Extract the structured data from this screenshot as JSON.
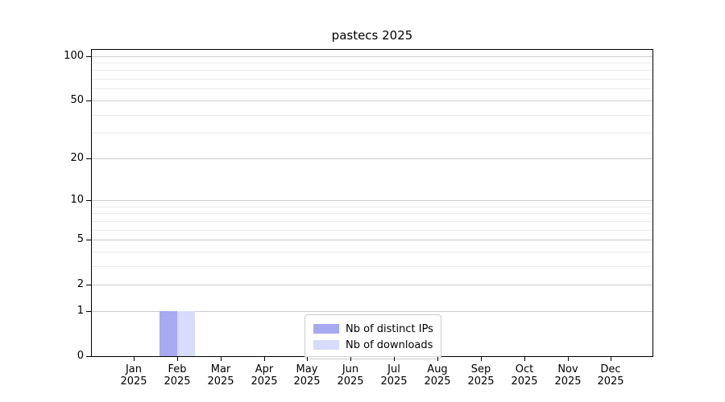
{
  "chart_data": {
    "type": "bar",
    "title": "pastecs 2025",
    "x_months": [
      "Jan",
      "Feb",
      "Mar",
      "Apr",
      "May",
      "Jun",
      "Jul",
      "Aug",
      "Sep",
      "Oct",
      "Nov",
      "Dec"
    ],
    "x_year": "2025",
    "series": [
      {
        "name": "Nb of distinct IPs",
        "color": "#a7aaf0",
        "values": [
          0,
          1,
          0,
          0,
          0,
          0,
          0,
          0,
          0,
          0,
          0,
          0
        ]
      },
      {
        "name": "Nb of downloads",
        "color": "#d8dbfa",
        "values": [
          0,
          1,
          0,
          0,
          0,
          0,
          0,
          0,
          0,
          0,
          0,
          0
        ]
      }
    ],
    "y_scale": "log1p",
    "y_tick_values": [
      0,
      1,
      2,
      5,
      10,
      20,
      50,
      100
    ],
    "y_minor_gridline_values": [
      3,
      4,
      6,
      7,
      8,
      9,
      30,
      40,
      60,
      70,
      80,
      90
    ],
    "ylim": [
      0,
      110
    ],
    "grid": "horizontal-only",
    "legend_position": "lower-center-inside",
    "colors": {
      "axis": "#000000",
      "grid_major": "#cccccc",
      "grid_minor": "#ebebeb",
      "background": "#ffffff",
      "legend_border": "#cccccc"
    }
  }
}
